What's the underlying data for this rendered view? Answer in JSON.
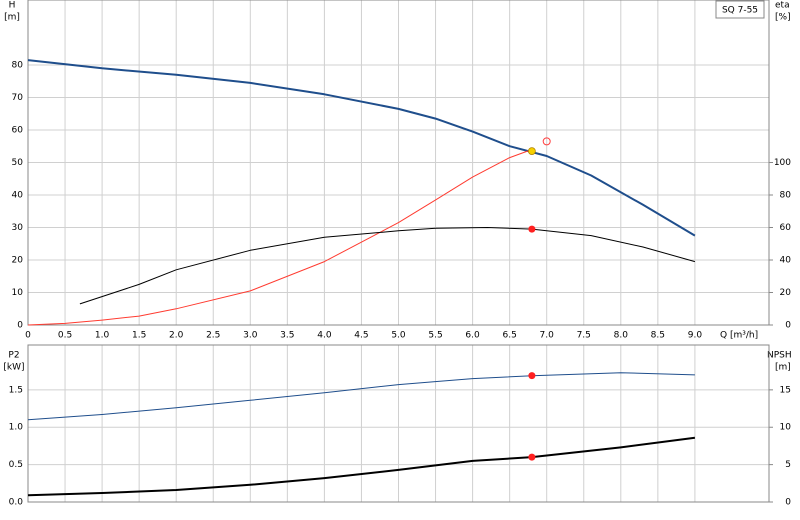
{
  "chart_data": [
    {
      "type": "line",
      "title": "SQ 7-55",
      "xlabel": "Q [m³/h]",
      "ylabel": "H",
      "yunit": "[m]",
      "y2label": "eta",
      "y2unit": "[%]",
      "xlim": [
        0,
        10
      ],
      "xticks": [
        0,
        0.5,
        {
          "value": 1,
          "label": "1.0"
        },
        1.5,
        {
          "value": 2,
          "label": "2.0"
        },
        2.5,
        {
          "value": 3,
          "label": "3.0"
        },
        3.5,
        {
          "value": 4,
          "label": "4.0"
        },
        4.5,
        {
          "value": 5,
          "label": "5.0"
        },
        5.5,
        {
          "value": 6,
          "label": "6.0"
        },
        6.5,
        {
          "value": 7,
          "label": "7.0"
        },
        7.5,
        {
          "value": 8,
          "label": "8.0"
        },
        8.5,
        {
          "value": 9,
          "label": "9.0"
        }
      ],
      "ylim": [
        0,
        100
      ],
      "yticks": [
        0,
        10,
        20,
        30,
        40,
        50,
        60,
        70,
        80
      ],
      "y2lim": [
        0,
        200
      ],
      "y2ticks": [
        0,
        20,
        40,
        60,
        80,
        100
      ],
      "grid": true,
      "series": [
        {
          "color": "#1f4e8c",
          "width": 2,
          "axis": "y",
          "x": [
            0,
            1,
            2,
            3,
            4,
            5,
            5.5,
            6,
            6.5,
            7,
            7.6,
            8.3,
            9
          ],
          "values": [
            81.5,
            79,
            77,
            74.5,
            71,
            66.5,
            63.5,
            59.5,
            55,
            52,
            46,
            37,
            27.5
          ]
        },
        {
          "color": "#ff3b30",
          "width": 1,
          "axis": "y2",
          "x": [
            0,
            0.5,
            1,
            1.5,
            2,
            3,
            4,
            5,
            5.5,
            6,
            6.5,
            6.8
          ],
          "values": [
            0,
            1,
            3,
            5.5,
            10,
            21,
            39,
            63,
            77,
            91,
            103,
            108
          ]
        },
        {
          "color": "#000000",
          "width": 1,
          "axis": "y2",
          "x": [
            0.7,
            1.5,
            2,
            3,
            4,
            5,
            5.5,
            6.2,
            6.8,
            7.6,
            8.3,
            9
          ],
          "values": [
            13,
            25,
            34,
            46,
            54,
            58,
            59.6,
            60,
            59,
            55,
            48,
            39
          ]
        }
      ],
      "points": [
        {
          "x": 6.8,
          "y": 53.5,
          "axis": "y",
          "color": "#f5d000",
          "hollow": false
        },
        {
          "x": 6.8,
          "y": 59,
          "axis": "y2",
          "color": "#ff2020",
          "hollow": false
        },
        {
          "x": 7,
          "y": 113,
          "axis": "y2",
          "color": "#ff4040",
          "hollow": true
        }
      ]
    },
    {
      "type": "line",
      "ylabel": "P2",
      "yunit": "[kW]",
      "y2label": "NPSH",
      "y2unit": "[m]",
      "xlim": [
        0,
        10
      ],
      "xticks": [
        0,
        0.5,
        1,
        1.5,
        2,
        2.5,
        3,
        3.5,
        4,
        4.5,
        5,
        5.5,
        6,
        6.5,
        7,
        7.5,
        8,
        8.5,
        9
      ],
      "ylim": [
        0,
        2.1
      ],
      "yticks": [
        {
          "value": 0,
          "label": "0.0"
        },
        0.5,
        {
          "value": 1,
          "label": "1.0"
        },
        1.5
      ],
      "y2lim": [
        0,
        21
      ],
      "y2ticks": [
        0,
        5,
        10,
        15
      ],
      "grid": true,
      "series": [
        {
          "color": "#1f4e8c",
          "width": 1,
          "axis": "y",
          "x": [
            0,
            1,
            2,
            3,
            4,
            5,
            6,
            6.8,
            8,
            9
          ],
          "values": [
            1.1,
            1.17,
            1.26,
            1.36,
            1.46,
            1.57,
            1.65,
            1.69,
            1.73,
            1.7
          ]
        },
        {
          "color": "#000000",
          "width": 2,
          "axis": "y2",
          "x": [
            0,
            1,
            2,
            3,
            4,
            5,
            6,
            6.8,
            8,
            9
          ],
          "values": [
            0.9,
            1.2,
            1.6,
            2.3,
            3.2,
            4.3,
            5.5,
            6,
            7.3,
            8.6
          ]
        }
      ],
      "points": [
        {
          "x": 6.8,
          "y": 1.69,
          "axis": "y",
          "color": "#ff2020",
          "hollow": false
        },
        {
          "x": 6.8,
          "y": 6,
          "axis": "y2",
          "color": "#ff2020",
          "hollow": false
        }
      ]
    }
  ]
}
